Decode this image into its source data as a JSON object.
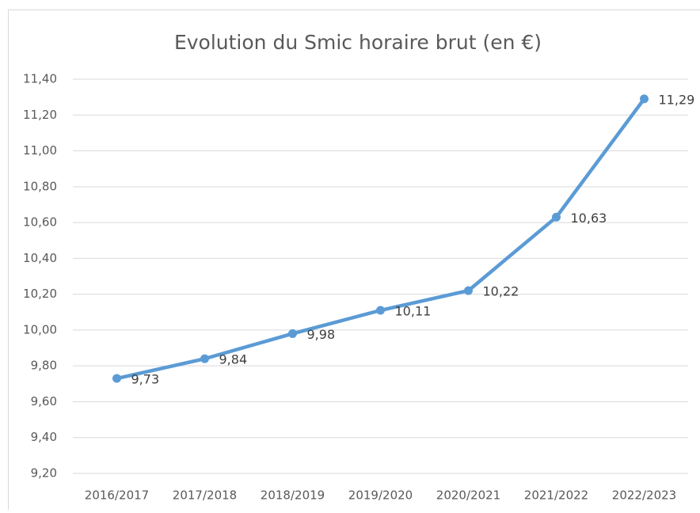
{
  "chart_data": {
    "type": "line",
    "title": "Evolution du Smic horaire brut (en €)",
    "categories": [
      "2016/2017",
      "2017/2018",
      "2018/2019",
      "2019/2020",
      "2020/2021",
      "2021/2022",
      "2022/2023"
    ],
    "values": [
      9.73,
      9.84,
      9.98,
      10.11,
      10.22,
      10.63,
      11.29
    ],
    "value_labels": [
      "9,73",
      "9,84",
      "9,98",
      "10,11",
      "10,22",
      "10,63",
      "11,29"
    ],
    "color": "#5b9bd5",
    "ylim": [
      9.2,
      11.4
    ],
    "yticks": [
      {
        "value": 9.2,
        "label": "9,20"
      },
      {
        "value": 9.4,
        "label": "9,40"
      },
      {
        "value": 9.6,
        "label": "9,60"
      },
      {
        "value": 9.8,
        "label": "9,80"
      },
      {
        "value": 10.0,
        "label": "10,00"
      },
      {
        "value": 10.2,
        "label": "10,20"
      },
      {
        "value": 10.4,
        "label": "10,40"
      },
      {
        "value": 10.6,
        "label": "10,60"
      },
      {
        "value": 10.8,
        "label": "10,80"
      },
      {
        "value": 11.0,
        "label": "11,00"
      },
      {
        "value": 11.2,
        "label": "11,20"
      },
      {
        "value": 11.4,
        "label": "11,40"
      }
    ],
    "grid": true
  }
}
